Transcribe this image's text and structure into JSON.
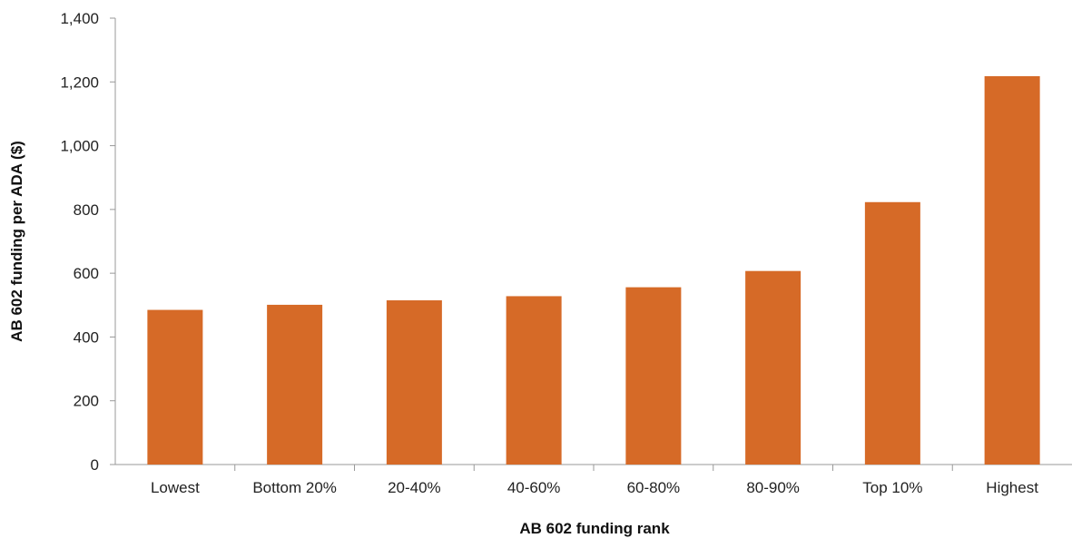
{
  "chart_data": {
    "type": "bar",
    "title": "",
    "xlabel": "AB 602 funding rank",
    "ylabel": "AB 602 funding per ADA ($)",
    "categories": [
      "Lowest",
      "Bottom 20%",
      "20-40%",
      "40-60%",
      "60-80%",
      "80-90%",
      "Top 10%",
      "Highest"
    ],
    "values": [
      485,
      501,
      515,
      528,
      556,
      607,
      823,
      1218
    ],
    "ylim": [
      0,
      1400
    ],
    "yticks": [
      0,
      200,
      400,
      600,
      800,
      1000,
      1200,
      1400
    ],
    "ytick_labels": [
      "0",
      "200",
      "400",
      "600",
      "800",
      "1,000",
      "1,200",
      "1,400"
    ],
    "grid": false,
    "legend": "none",
    "colors": {
      "bar": "#D66A27",
      "axis": "#999999"
    }
  }
}
